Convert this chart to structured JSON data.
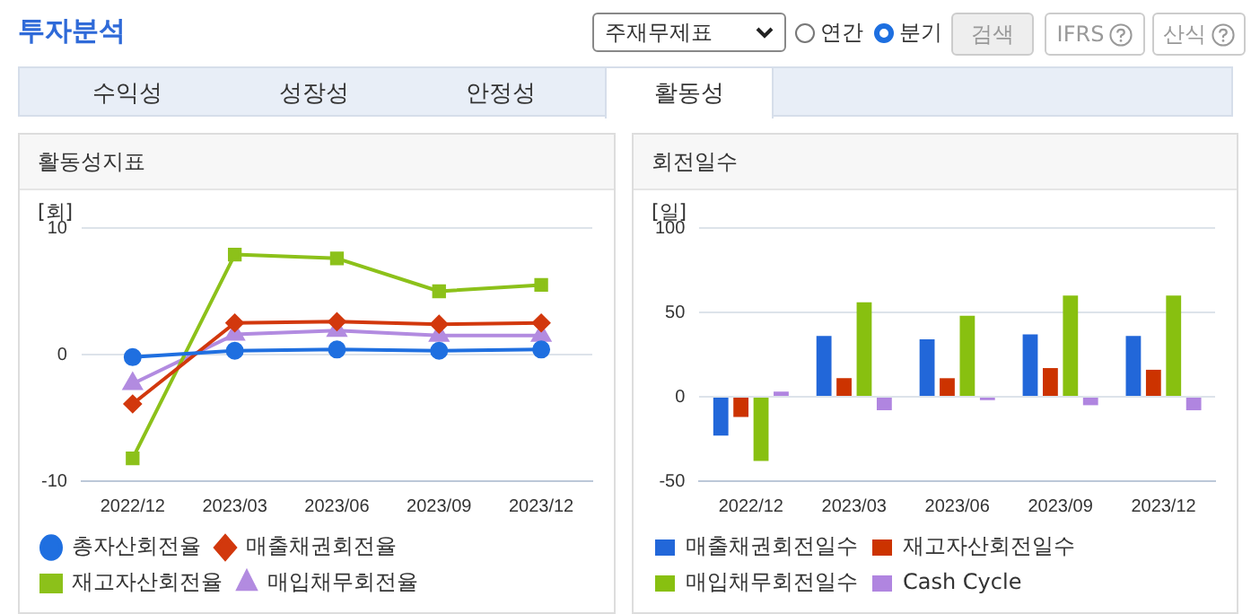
{
  "chart_data": [
    {
      "type": "other",
      "title": "투자분석",
      "annotations": [
        "주재무제표",
        "연간",
        "분기",
        "검색",
        "IFRS",
        "산식",
        "수익성",
        "성장성",
        "안정성",
        "활동성"
      ]
    },
    {
      "type": "line",
      "title": "활동성지표",
      "ylabel": "[회]",
      "categories": [
        "2022/12",
        "2023/03",
        "2023/06",
        "2023/09",
        "2023/12"
      ],
      "ylim": [
        -10,
        10
      ],
      "yticks": [
        -10,
        0,
        10
      ],
      "grid": "y",
      "legend": "bottom",
      "series": [
        {
          "name": "총자산회전율",
          "color": "#1f6fe0",
          "marker": "circle",
          "values": [
            -0.2,
            0.3,
            0.4,
            0.3,
            0.4
          ]
        },
        {
          "name": "매출채권회전율",
          "color": "#d2380d",
          "marker": "diamond",
          "values": [
            -3.9,
            2.5,
            2.6,
            2.4,
            2.5
          ]
        },
        {
          "name": "재고자산회전율",
          "color": "#8cc11a",
          "marker": "square",
          "values": [
            -8.2,
            7.9,
            7.6,
            5.0,
            5.5
          ]
        },
        {
          "name": "매입채무회전율",
          "color": "#b28be0",
          "marker": "triangle",
          "values": [
            -2.3,
            1.6,
            1.9,
            1.5,
            1.5
          ]
        }
      ]
    },
    {
      "type": "bar",
      "title": "회전일수",
      "ylabel": "[일]",
      "categories": [
        "2022/12",
        "2023/03",
        "2023/06",
        "2023/09",
        "2023/12"
      ],
      "ylim": [
        -50,
        100
      ],
      "yticks": [
        -50,
        0,
        50,
        100
      ],
      "grid": "y",
      "legend": "bottom",
      "series": [
        {
          "name": "매출채권회전일수",
          "color": "#2267d9",
          "values": [
            -23,
            36,
            34,
            37,
            36
          ]
        },
        {
          "name": "재고자산회전일수",
          "color": "#cc3300",
          "values": [
            -12,
            11,
            11,
            17,
            16
          ]
        },
        {
          "name": "매입채무회전일수",
          "color": "#88c010",
          "values": [
            -38,
            56,
            48,
            60,
            60
          ]
        },
        {
          "name": "Cash Cycle",
          "color": "#b085e0",
          "values": [
            3,
            -8,
            -2,
            -5,
            -8
          ]
        }
      ]
    }
  ]
}
